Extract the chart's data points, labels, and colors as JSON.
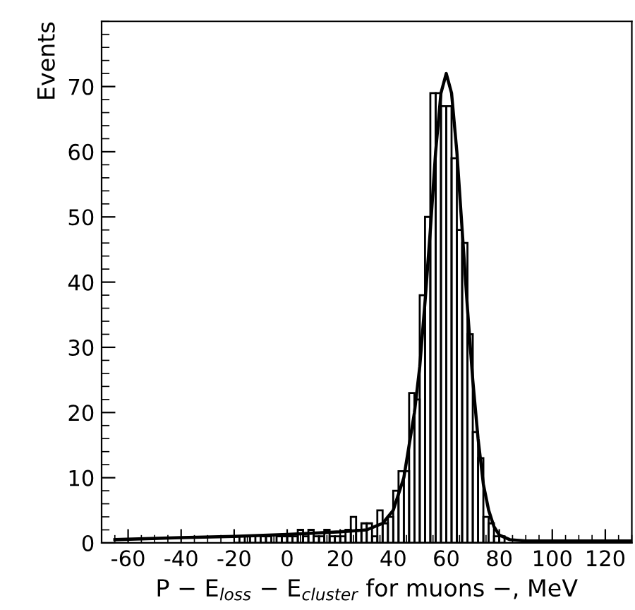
{
  "chart_data": {
    "type": "histogram",
    "xlabel": "P − E$_{loss}$ − E$_{cluster}$ for muons −, MeV",
    "ylabel": "Events",
    "xlim": [
      -70,
      130
    ],
    "ylim": [
      0,
      80
    ],
    "xticks": [
      -60,
      -40,
      -20,
      0,
      20,
      40,
      60,
      80,
      100,
      120
    ],
    "yticks": [
      0,
      10,
      20,
      30,
      40,
      50,
      60,
      70
    ],
    "grid": false,
    "legend": false,
    "series": [
      {
        "color": "#000000",
        "bins": [
          -20,
          -18,
          -16,
          -14,
          -12,
          -10,
          -8,
          -6,
          -4,
          -2,
          0,
          2,
          4,
          6,
          8,
          10,
          12,
          14,
          16,
          18,
          20,
          22,
          24,
          26,
          28,
          30,
          32,
          34,
          36,
          38,
          40,
          42,
          44,
          46,
          48,
          50,
          52,
          54,
          56,
          58,
          60,
          62,
          64,
          66,
          68,
          70,
          72,
          74,
          76,
          78,
          80,
          82
        ],
        "values": [
          0,
          1,
          0,
          1,
          0,
          1,
          1,
          0,
          1,
          1,
          1,
          1,
          2,
          1,
          2,
          1,
          1,
          2,
          1,
          1,
          1,
          2,
          4,
          2,
          3,
          3,
          1,
          5,
          3,
          4,
          8,
          11,
          11,
          23,
          22,
          38,
          50,
          69,
          69,
          67,
          67,
          59,
          48,
          46,
          32,
          17,
          13,
          4,
          3,
          1,
          1
        ]
      },
      {
        "type": "line",
        "color": "#000000",
        "x": [
          -65,
          -40,
          -20,
          0,
          20,
          30,
          36,
          40,
          44,
          48,
          50,
          52,
          54,
          56,
          58,
          60,
          62,
          64,
          66,
          68,
          70,
          72,
          74,
          76,
          78,
          80,
          84,
          90,
          130
        ],
        "values": [
          0.5,
          0.8,
          1,
          1.3,
          1.7,
          2,
          3,
          5,
          10,
          20,
          27,
          37,
          48,
          60,
          69,
          72,
          69,
          60,
          48,
          36,
          25,
          16,
          9,
          5,
          2.5,
          1.2,
          0.5,
          0.3,
          0.3
        ]
      }
    ]
  }
}
